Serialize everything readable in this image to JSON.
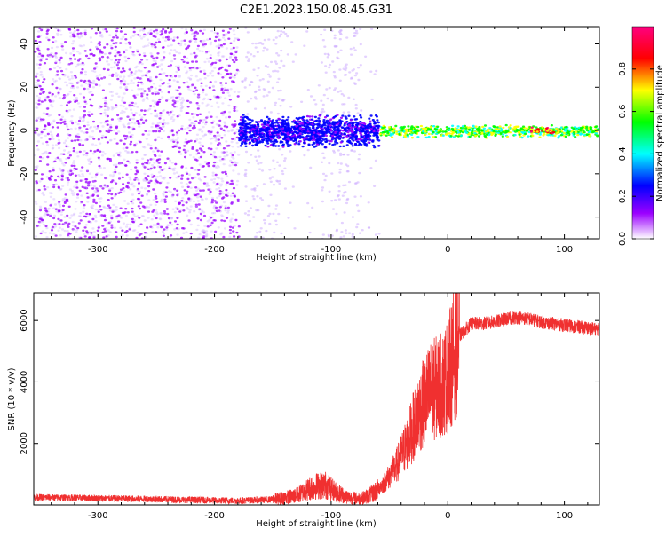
{
  "title": "C2E1.2023.150.08.45.G31",
  "chart_data": [
    {
      "type": "heatmap",
      "xlabel": "Height of straight line (km)",
      "ylabel": "Frequency (Hz)",
      "xlim": [
        -355,
        130
      ],
      "ylim": [
        -50,
        48
      ],
      "x_ticks": [
        -300,
        -200,
        -100,
        0,
        100
      ],
      "y_ticks": [
        -40,
        -20,
        0,
        20,
        40
      ],
      "grid": false,
      "colorbar": {
        "label": "Normalized spectral amplitude",
        "range": [
          0.0,
          1.0
        ],
        "ticks": [
          "0.0",
          "0.2",
          "0.4",
          "0.6",
          "0.8"
        ],
        "colors": [
          "#ffffff",
          "#9b00ff",
          "#0000ff",
          "#00ffff",
          "#00ff00",
          "#ffff00",
          "#ff0000",
          "#ff0080"
        ]
      },
      "features": [
        {
          "x_range": [
            -355,
            -180
          ],
          "freq_range": [
            -50,
            48
          ],
          "amplitude": 0.1,
          "note": "broadband scattered noise"
        },
        {
          "x_range": [
            -180,
            -60
          ],
          "freq_range": [
            -8,
            8
          ],
          "amplitude": 0.3,
          "note": "central band emerging"
        },
        {
          "x_range": [
            -60,
            130
          ],
          "freq_range": [
            -3,
            3
          ],
          "amplitude": 0.7,
          "note": "narrow carrier line"
        },
        {
          "x_range": [
            70,
            95
          ],
          "freq_range": [
            -1,
            2
          ],
          "amplitude": 0.95,
          "note": "peak"
        }
      ]
    },
    {
      "type": "line",
      "xlabel": "Height of straight line (km)",
      "ylabel": "SNR (10 * v/v)",
      "xlim": [
        -355,
        130
      ],
      "ylim": [
        0,
        6900
      ],
      "x_ticks": [
        -300,
        -200,
        -100,
        0,
        100
      ],
      "y_ticks": [
        2000,
        4000,
        6000
      ],
      "color": "#f03030",
      "series": [
        {
          "x": [
            -355,
            -300,
            -250,
            -200,
            -180,
            -150,
            -130,
            -115,
            -105,
            -95,
            -85,
            -75,
            -65,
            -55,
            -45,
            -35,
            -25,
            -15,
            -5,
            0,
            10,
            20,
            30,
            40,
            50,
            60,
            70,
            80,
            90,
            100,
            110,
            120,
            130
          ],
          "values": [
            250,
            220,
            190,
            150,
            140,
            180,
            300,
            600,
            650,
            400,
            250,
            200,
            350,
            700,
            1200,
            2000,
            3000,
            3700,
            3900,
            4200,
            5500,
            5900,
            5900,
            5950,
            6050,
            6100,
            6050,
            5950,
            5900,
            5850,
            5800,
            5750,
            5700
          ]
        }
      ]
    }
  ]
}
